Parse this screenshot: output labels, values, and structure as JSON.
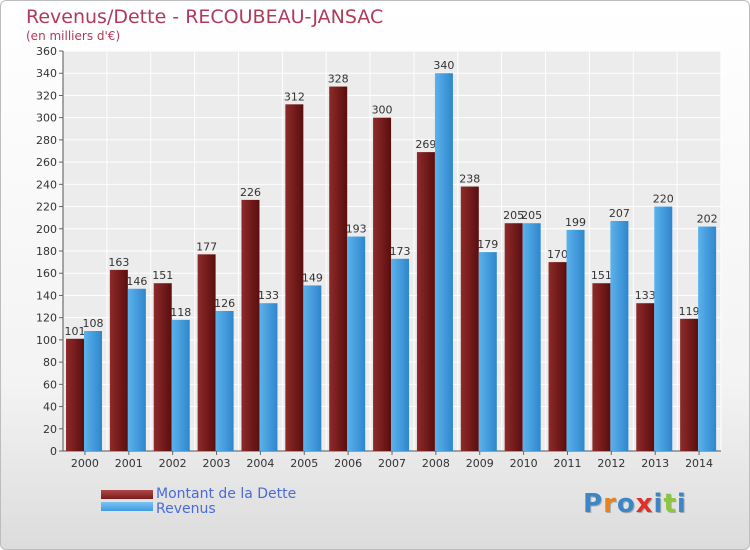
{
  "header": {
    "title": "Revenus/Dette - RECOUBEAU-JANSAC",
    "subtitle": "(en milliers d'€)"
  },
  "legend": {
    "items": [
      {
        "label": "Montant de la Dette",
        "color": "#7a1c1c"
      },
      {
        "label": "Revenus",
        "color": "#3d9be0"
      }
    ]
  },
  "logo": {
    "text": "Proxiti",
    "letter_colors": [
      "#3d86c6",
      "#e8821e",
      "#3d86c6",
      "#e0302a",
      "#3d86c6",
      "#8cc63e",
      "#3d86c6"
    ]
  },
  "chart_data": {
    "type": "bar",
    "title": "Revenus/Dette - RECOUBEAU-JANSAC",
    "subtitle": "(en milliers d'€)",
    "categories": [
      "2000",
      "2001",
      "2002",
      "2003",
      "2004",
      "2005",
      "2006",
      "2007",
      "2008",
      "2009",
      "2010",
      "2011",
      "2012",
      "2013",
      "2014"
    ],
    "series": [
      {
        "name": "Montant de la Dette",
        "color": "#7a1c1c",
        "values": [
          101,
          163,
          151,
          177,
          226,
          312,
          328,
          300,
          269,
          238,
          205,
          170,
          151,
          133,
          119
        ],
        "labels": [
          "101",
          "163",
          "151",
          "177",
          "226",
          "312",
          "328",
          "300",
          "269",
          "238",
          "205",
          "170",
          "151",
          "133",
          "119"
        ]
      },
      {
        "name": "Revenus",
        "color": "#3d9be0",
        "values": [
          108,
          146,
          118,
          126,
          133,
          149,
          193,
          173,
          340,
          179,
          205,
          199,
          207,
          220,
          202
        ],
        "labels": [
          "108",
          "146",
          "118",
          "126",
          "133",
          "149",
          "193",
          "173",
          "340",
          "179",
          "205",
          "199",
          "207",
          "220",
          "202"
        ]
      }
    ],
    "ylim": [
      0,
      360
    ],
    "yticks": [
      0,
      20,
      40,
      60,
      80,
      100,
      120,
      140,
      160,
      180,
      200,
      220,
      240,
      260,
      280,
      300,
      320,
      340,
      360
    ],
    "grid": true,
    "legend_position": "bottom-left"
  }
}
